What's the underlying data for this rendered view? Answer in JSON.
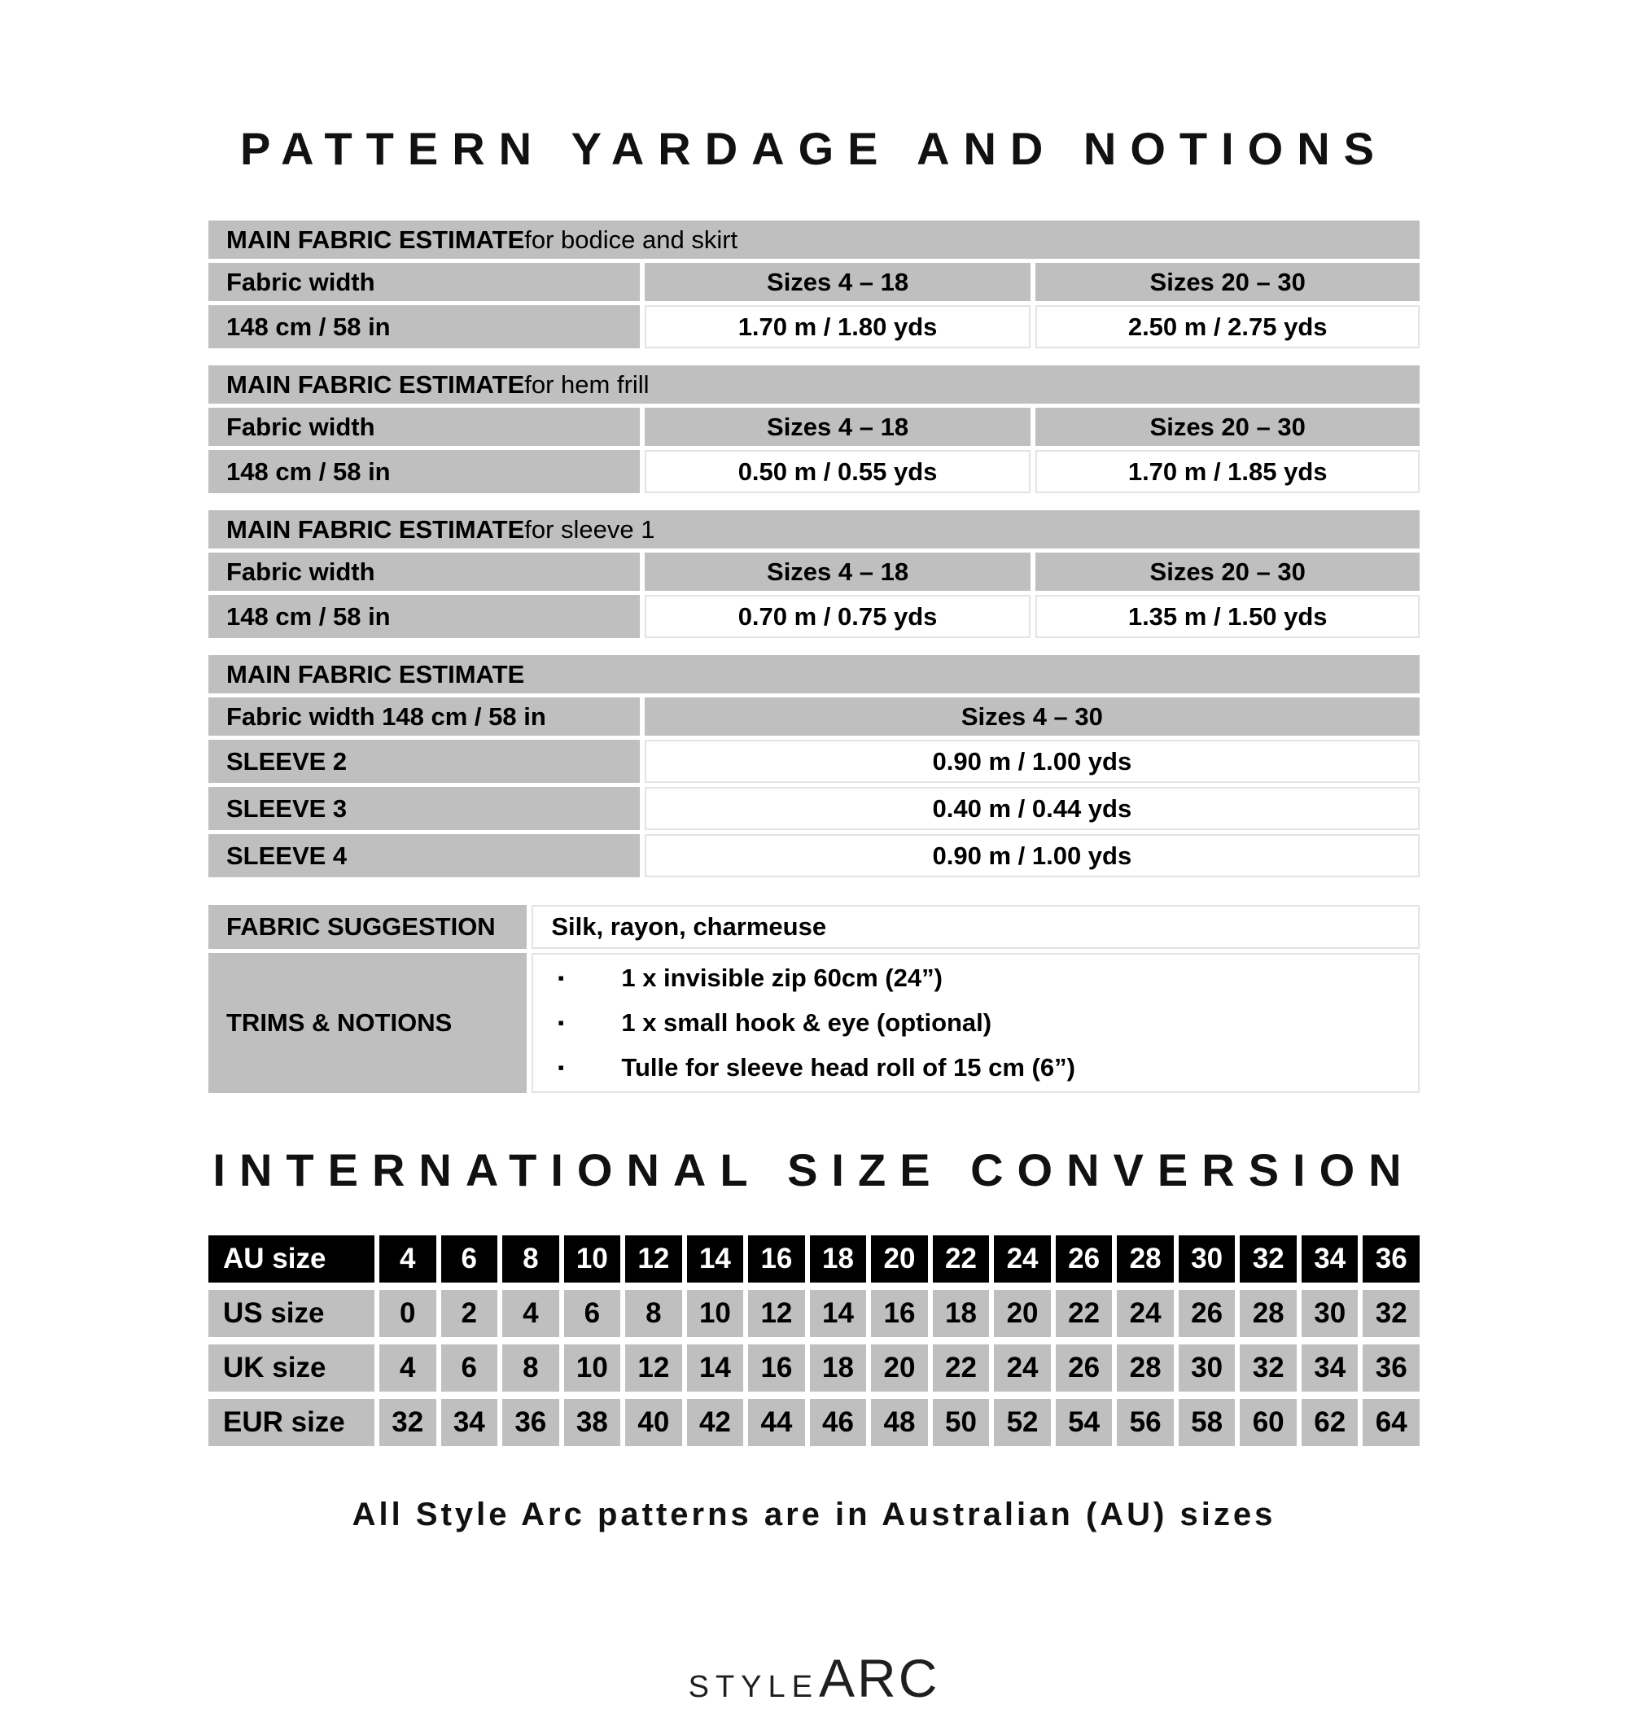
{
  "title": "PATTERN YARDAGE AND NOTIONS",
  "colors": {
    "cell_gray": "#bfbfbf",
    "header_black": "#000000",
    "page_white": "#ffffff",
    "text_black": "#000000"
  },
  "yardage_tables": [
    {
      "title_bold": "MAIN FABRIC ESTIMATE",
      "title_rest": " for bodice and skirt",
      "col1": "Fabric width",
      "col2": "Sizes 4 – 18",
      "col3": "Sizes 20 – 30",
      "row_label": "148 cm / 58 in",
      "row_val2": "1.70 m / 1.80 yds",
      "row_val3": "2.50 m / 2.75 yds"
    },
    {
      "title_bold": "MAIN FABRIC ESTIMATE",
      "title_rest": " for hem frill",
      "col1": "Fabric width",
      "col2": "Sizes 4 – 18",
      "col3": "Sizes 20 – 30",
      "row_label": "148 cm / 58 in",
      "row_val2": "0.50 m / 0.55 yds",
      "row_val3": "1.70 m / 1.85 yds"
    },
    {
      "title_bold": "MAIN FABRIC ESTIMATE",
      "title_rest": " for sleeve 1",
      "col1": "Fabric width",
      "col2": "Sizes 4 – 18",
      "col3": "Sizes 20 – 30",
      "row_label": "148 cm / 58 in",
      "row_val2": "0.70 m / 0.75 yds",
      "row_val3": "1.35 m / 1.50 yds"
    }
  ],
  "sleeve_table": {
    "title_bold": "MAIN FABRIC ESTIMATE",
    "title_rest": "",
    "col1": "Fabric width 148 cm / 58 in",
    "col2": "Sizes 4 – 30",
    "rows": [
      {
        "label": "SLEEVE 2",
        "value": "0.90 m / 1.00 yds"
      },
      {
        "label": "SLEEVE 3",
        "value": "0.40 m / 0.44 yds"
      },
      {
        "label": "SLEEVE 4",
        "value": "0.90 m / 1.00 yds"
      }
    ]
  },
  "notions": {
    "fabric_suggestion_label": "FABRIC SUGGESTION",
    "fabric_suggestion_value": "Silk, rayon, charmeuse",
    "trims_label": "TRIMS & NOTIONS",
    "bullet_icon": "▪",
    "trims_items": [
      "1 x invisible zip 60cm (24”)",
      "1 x small hook & eye (optional)",
      "Tulle for sleeve head roll of 15 cm (6”)"
    ]
  },
  "size_conversion": {
    "title": "INTERNATIONAL SIZE CONVERSION",
    "rows": [
      {
        "label": "AU size",
        "header": true,
        "values": [
          "4",
          "6",
          "8",
          "10",
          "12",
          "14",
          "16",
          "18",
          "20",
          "22",
          "24",
          "26",
          "28",
          "30",
          "32",
          "34",
          "36"
        ]
      },
      {
        "label": "US size",
        "header": false,
        "values": [
          "0",
          "2",
          "4",
          "6",
          "8",
          "10",
          "12",
          "14",
          "16",
          "18",
          "20",
          "22",
          "24",
          "26",
          "28",
          "30",
          "32"
        ]
      },
      {
        "label": "UK size",
        "header": false,
        "values": [
          "4",
          "6",
          "8",
          "10",
          "12",
          "14",
          "16",
          "18",
          "20",
          "22",
          "24",
          "26",
          "28",
          "30",
          "32",
          "34",
          "36"
        ]
      },
      {
        "label": "EUR size",
        "header": false,
        "values": [
          "32",
          "34",
          "36",
          "38",
          "40",
          "42",
          "44",
          "46",
          "48",
          "50",
          "52",
          "54",
          "56",
          "58",
          "60",
          "62",
          "64"
        ]
      }
    ]
  },
  "footer_note": "All Style Arc patterns are in Australian (AU) sizes",
  "logo": {
    "style_text": "STYLE",
    "arc_text": "ARC"
  }
}
